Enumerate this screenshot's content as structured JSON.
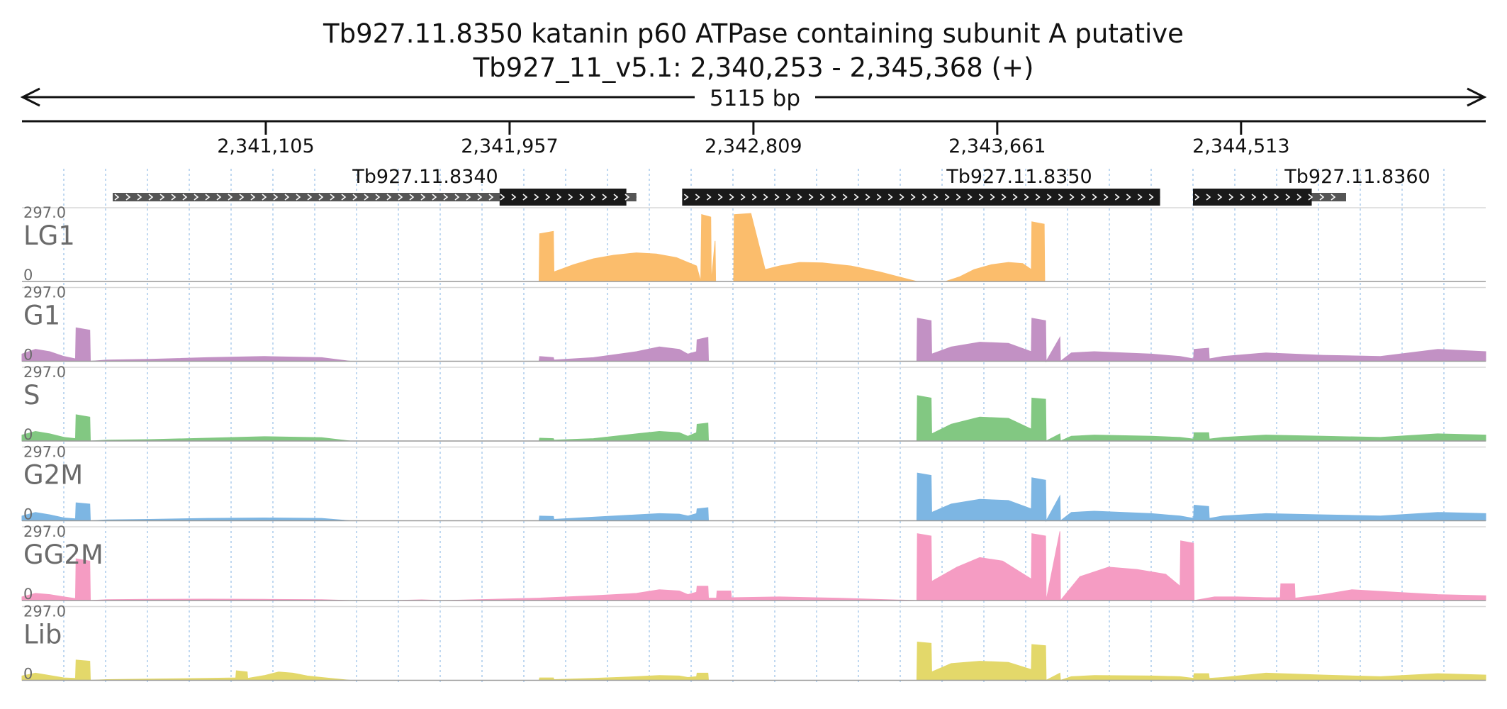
{
  "chart_data": {
    "type": "area",
    "title": "Tb927.11.8350  katanin p60 ATPase containing subunit A  putative",
    "subtitle": "Tb927_11_v5.1: 2,340,253 - 2,345,368 (+)",
    "span_label": "5115 bp",
    "xlim": [
      2340253,
      2345368
    ],
    "ticks": [
      {
        "value": 2341105,
        "label": "2,341,105"
      },
      {
        "value": 2341957,
        "label": "2,341,957"
      },
      {
        "value": 2342809,
        "label": "2,342,809"
      },
      {
        "value": 2343661,
        "label": "2,343,661"
      },
      {
        "value": 2344513,
        "label": "2,344,513"
      }
    ],
    "grid": true,
    "genes": [
      {
        "name": "Tb927.11.8340",
        "start": 2340570,
        "end": 2342400,
        "cds": [
          2341922,
          2342365
        ],
        "utr": [
          [
            2340570,
            2341922
          ],
          [
            2342365,
            2342400
          ]
        ],
        "strand": "+"
      },
      {
        "name": "Tb927.11.8350",
        "start": 2342560,
        "end": 2344230,
        "cds": [
          2342560,
          2344230
        ],
        "utr": [],
        "strand": "+"
      },
      {
        "name": "Tb927.11.8360",
        "start": 2344345,
        "end": 2344880,
        "cds": [
          2344345,
          2344760
        ],
        "utr": [
          [
            2344760,
            2344880
          ]
        ],
        "strand": "+"
      }
    ],
    "series": [
      {
        "name": "LG1",
        "color": "#fbbd6c",
        "ymax_label": "297.0",
        "ymin_label": "0",
        "ylim": [
          0,
          297
        ],
        "x": [
          2340253,
          2342060,
          2342062,
          2342110,
          2342112,
          2342180,
          2342250,
          2342320,
          2342400,
          2342470,
          2342540,
          2342570,
          2342610,
          2342625,
          2342628,
          2342660,
          2342662,
          2342675,
          2342677,
          2342740,
          2342742,
          2342800,
          2342850,
          2342900,
          2342970,
          2343050,
          2343150,
          2343250,
          2343380,
          2343480,
          2343530,
          2343580,
          2343640,
          2343700,
          2343750,
          2343780,
          2343782,
          2343825,
          2343827,
          2345368
        ],
        "values": [
          0,
          0,
          200,
          210,
          40,
          70,
          95,
          110,
          120,
          115,
          100,
          85,
          65,
          0,
          280,
          270,
          0,
          170,
          0,
          0,
          280,
          285,
          50,
          65,
          80,
          78,
          65,
          40,
          0,
          0,
          20,
          50,
          70,
          80,
          75,
          50,
          250,
          240,
          0,
          0
        ]
      },
      {
        "name": "G1",
        "color": "#c291c4",
        "ymax_label": "297.0",
        "ymin_label": "0",
        "ylim": [
          0,
          297
        ],
        "x": [
          2340253,
          2340300,
          2340350,
          2340400,
          2340440,
          2340442,
          2340490,
          2340492,
          2340550,
          2340700,
          2340900,
          2341100,
          2341300,
          2341400,
          2341550,
          2341650,
          2341720,
          2341800,
          2341850,
          2341900,
          2342060,
          2342062,
          2342110,
          2342112,
          2342250,
          2342400,
          2342480,
          2342550,
          2342580,
          2342610,
          2342612,
          2342650,
          2342652,
          2342700,
          2342900,
          2343100,
          2343380,
          2343382,
          2343430,
          2343432,
          2343500,
          2343600,
          2343700,
          2343780,
          2343782,
          2343830,
          2343832,
          2343880,
          2343882,
          2343920,
          2344000,
          2344200,
          2344300,
          2344347,
          2344349,
          2344400,
          2344402,
          2344450,
          2344600,
          2344800,
          2345000,
          2345200,
          2345368
        ],
        "values": [
          30,
          50,
          40,
          20,
          10,
          140,
          130,
          0,
          5,
          8,
          15,
          20,
          15,
          0,
          0,
          0,
          0,
          0,
          0,
          0,
          0,
          20,
          15,
          5,
          15,
          40,
          60,
          50,
          30,
          40,
          90,
          100,
          0,
          0,
          0,
          0,
          0,
          180,
          170,
          30,
          60,
          80,
          75,
          40,
          180,
          170,
          0,
          100,
          0,
          35,
          40,
          30,
          20,
          10,
          50,
          55,
          10,
          20,
          35,
          25,
          20,
          50,
          40
        ]
      },
      {
        "name": "S",
        "color": "#82c882",
        "ymax_label": "297.0",
        "ymin_label": "0",
        "ylim": [
          0,
          297
        ],
        "x": [
          2340253,
          2340300,
          2340350,
          2340400,
          2340440,
          2340442,
          2340490,
          2340492,
          2340550,
          2340700,
          2340900,
          2341100,
          2341300,
          2341400,
          2342060,
          2342062,
          2342110,
          2342112,
          2342250,
          2342400,
          2342480,
          2342550,
          2342580,
          2342610,
          2342612,
          2342650,
          2342652,
          2342700,
          2343380,
          2343382,
          2343430,
          2343432,
          2343500,
          2343600,
          2343700,
          2343780,
          2343782,
          2343830,
          2343832,
          2343880,
          2343882,
          2343920,
          2344000,
          2344200,
          2344300,
          2344347,
          2344349,
          2344400,
          2344402,
          2344450,
          2344600,
          2344800,
          2345000,
          2345200,
          2345368
        ],
        "values": [
          25,
          40,
          30,
          15,
          10,
          110,
          100,
          0,
          4,
          6,
          12,
          18,
          14,
          0,
          0,
          12,
          10,
          4,
          10,
          30,
          40,
          35,
          20,
          35,
          70,
          75,
          0,
          0,
          0,
          190,
          180,
          30,
          70,
          100,
          95,
          50,
          180,
          175,
          0,
          30,
          0,
          20,
          25,
          20,
          15,
          8,
          35,
          35,
          8,
          15,
          25,
          20,
          15,
          30,
          25
        ]
      },
      {
        "name": "G2M",
        "color": "#7db6e3",
        "ymax_label": "297.0",
        "ymin_label": "0",
        "ylim": [
          0,
          297
        ],
        "x": [
          2340253,
          2340300,
          2340350,
          2340400,
          2340440,
          2340442,
          2340490,
          2340492,
          2340550,
          2340700,
          2340900,
          2341100,
          2341300,
          2341400,
          2342060,
          2342062,
          2342110,
          2342112,
          2342250,
          2342400,
          2342480,
          2342550,
          2342580,
          2342610,
          2342612,
          2342650,
          2342652,
          2342700,
          2343380,
          2343382,
          2343430,
          2343432,
          2343500,
          2343600,
          2343700,
          2343780,
          2343782,
          2343830,
          2343832,
          2343880,
          2343882,
          2343920,
          2344000,
          2344200,
          2344300,
          2344347,
          2344349,
          2344400,
          2344402,
          2344450,
          2344600,
          2344800,
          2345000,
          2345200,
          2345368
        ],
        "values": [
          20,
          35,
          25,
          12,
          8,
          75,
          70,
          0,
          4,
          6,
          10,
          12,
          10,
          0,
          0,
          20,
          18,
          6,
          15,
          25,
          30,
          28,
          20,
          30,
          50,
          55,
          0,
          0,
          0,
          200,
          190,
          35,
          70,
          90,
          85,
          50,
          180,
          170,
          0,
          105,
          0,
          35,
          40,
          30,
          20,
          10,
          65,
          60,
          10,
          20,
          30,
          25,
          20,
          35,
          30
        ]
      },
      {
        "name": "GG2M",
        "color": "#f59cc3",
        "ymax_label": "297.0",
        "ymin_label": "0",
        "ylim": [
          0,
          297
        ],
        "x": [
          2340253,
          2340300,
          2340350,
          2340400,
          2340440,
          2340442,
          2340490,
          2340492,
          2340550,
          2340700,
          2340900,
          2341100,
          2341300,
          2341400,
          2341550,
          2341650,
          2341720,
          2342060,
          2342250,
          2342400,
          2342480,
          2342550,
          2342580,
          2342610,
          2342612,
          2342650,
          2342652,
          2342680,
          2342682,
          2342730,
          2342732,
          2342900,
          2343100,
          2343380,
          2343382,
          2343430,
          2343432,
          2343520,
          2343600,
          2343680,
          2343780,
          2343782,
          2343830,
          2343832,
          2343880,
          2343882,
          2343950,
          2344050,
          2344150,
          2344250,
          2344300,
          2344302,
          2344347,
          2344349,
          2344420,
          2344500,
          2344600,
          2344650,
          2344652,
          2344700,
          2344702,
          2344800,
          2344900,
          2345050,
          2345200,
          2345368
        ],
        "values": [
          15,
          30,
          25,
          15,
          8,
          175,
          165,
          0,
          4,
          5,
          6,
          5,
          4,
          0,
          0,
          3,
          0,
          10,
          20,
          30,
          45,
          40,
          25,
          35,
          60,
          60,
          10,
          10,
          40,
          40,
          12,
          15,
          10,
          0,
          280,
          270,
          80,
          140,
          180,
          165,
          90,
          280,
          270,
          0,
          290,
          0,
          100,
          140,
          130,
          110,
          60,
          250,
          240,
          0,
          15,
          15,
          12,
          12,
          70,
          70,
          10,
          25,
          45,
          35,
          25,
          20
        ]
      },
      {
        "name": "Lib",
        "color": "#e3d86a",
        "ymax_label": "297.0",
        "ymin_label": "0",
        "ylim": [
          0,
          297
        ],
        "x": [
          2340253,
          2340300,
          2340350,
          2340400,
          2340440,
          2340442,
          2340490,
          2340492,
          2340550,
          2340700,
          2340900,
          2341000,
          2341002,
          2341040,
          2341042,
          2341100,
          2341150,
          2341200,
          2341250,
          2341300,
          2341400,
          2342060,
          2342062,
          2342110,
          2342112,
          2342250,
          2342400,
          2342480,
          2342550,
          2342580,
          2342610,
          2342612,
          2342650,
          2342652,
          2342700,
          2343380,
          2343382,
          2343430,
          2343432,
          2343500,
          2343600,
          2343700,
          2343780,
          2343782,
          2343830,
          2343832,
          2343880,
          2343882,
          2343920,
          2344000,
          2344200,
          2344300,
          2344347,
          2344349,
          2344400,
          2344402,
          2344450,
          2344600,
          2344800,
          2345000,
          2345200,
          2345368
        ],
        "values": [
          18,
          30,
          20,
          10,
          8,
          85,
          80,
          0,
          3,
          5,
          8,
          10,
          40,
          35,
          8,
          20,
          35,
          30,
          18,
          12,
          0,
          0,
          10,
          10,
          3,
          8,
          15,
          20,
          18,
          12,
          15,
          30,
          30,
          0,
          0,
          0,
          160,
          155,
          35,
          70,
          80,
          75,
          45,
          150,
          145,
          0,
          30,
          0,
          15,
          20,
          18,
          15,
          8,
          28,
          28,
          8,
          12,
          30,
          22,
          15,
          28,
          22
        ]
      }
    ]
  }
}
